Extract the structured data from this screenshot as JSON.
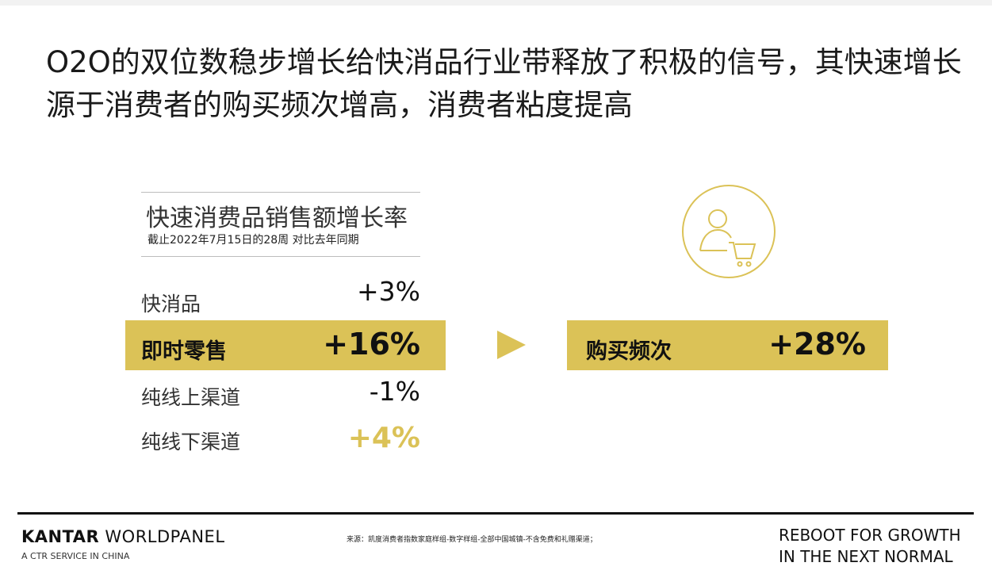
{
  "headline": "O2O的双位数稳步增长给快消品行业带释放了积极的信号，其快速增长源于消费者的购买频次增高，消费者粘度提高",
  "panel": {
    "title": "快速消费品销售额增长率",
    "subtitle": "截止2022年7月15日的28周 对比去年同期",
    "rows": [
      {
        "label": "快消品",
        "value": "+3%"
      },
      {
        "label": "即时零售",
        "value": "+16%"
      },
      {
        "label": "纯线上渠道",
        "value": "-1%"
      },
      {
        "label": "纯线下渠道",
        "value": "+4%"
      }
    ]
  },
  "frequency": {
    "label": "购买频次",
    "value": "+28%",
    "icon": "shopper-cart-icon"
  },
  "footer": {
    "brand_bold": "KANTAR",
    "brand_rest": " WORLDPANEL",
    "brand_sub": "A CTR SERVICE IN CHINA",
    "source": "来源：凯度消费者指数家庭样组-数字样组-全部中国城镇-不含免费和礼赠渠道；",
    "slogan_line1": "REBOOT FOR GROWTH",
    "slogan_line2": "IN THE NEXT NORMAL"
  },
  "colors": {
    "accent": "#dbc257",
    "text": "#111111"
  }
}
